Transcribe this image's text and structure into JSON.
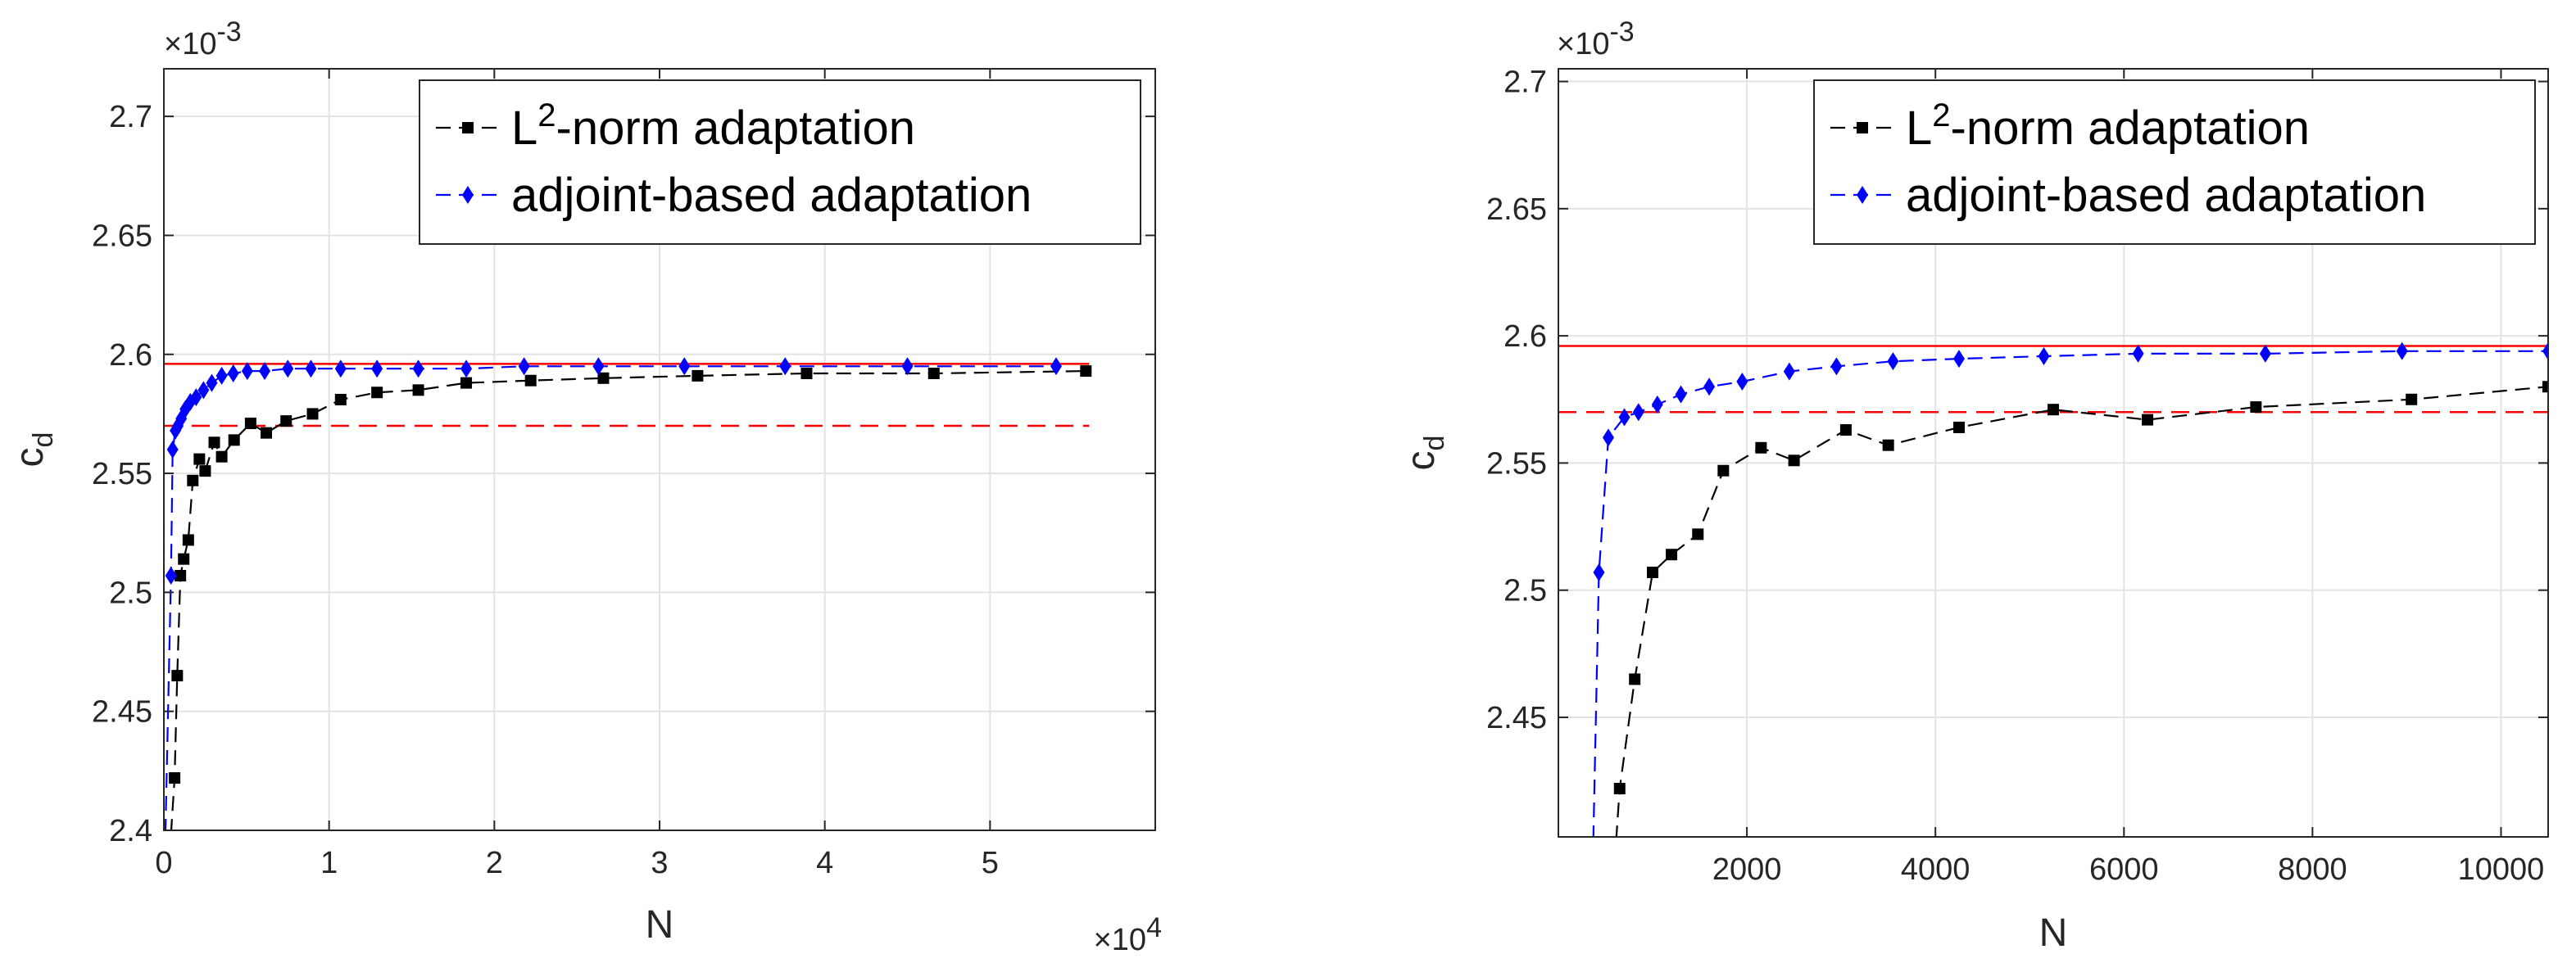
{
  "chart_data": [
    {
      "type": "line",
      "xlabel": "N",
      "ylabel": "c",
      "ylabel_sub": "d",
      "xlim": [
        0,
        60000
      ],
      "ylim": [
        0.0024,
        0.00272
      ],
      "xtick_values": [
        0,
        10000,
        20000,
        30000,
        40000,
        50000
      ],
      "xtick_labels": [
        "0",
        "1",
        "2",
        "3",
        "4",
        "5"
      ],
      "ytick_values": [
        0.0024,
        0.00245,
        0.0025,
        0.00255,
        0.0026,
        0.00265,
        0.0027
      ],
      "ytick_labels": [
        "2.4",
        "2.45",
        "2.5",
        "2.55",
        "2.6",
        "2.65",
        "2.7"
      ],
      "x_multiplier": {
        "base": "×10",
        "exp": "4"
      },
      "y_multiplier": {
        "base": "×10",
        "exp": "-3"
      },
      "grid": true,
      "legend_position": "top-right",
      "series": [
        {
          "name": "L2-norm adaptation",
          "legend_base": "L",
          "legend_sup": "2",
          "legend_rest": "-norm adaptation",
          "color": "#000000",
          "marker": "square",
          "line": "dashed",
          "x": [
            650,
            810,
            1000,
            1200,
            1480,
            1750,
            2150,
            2500,
            3050,
            3500,
            4250,
            5250,
            6200,
            7400,
            9000,
            10700,
            12900,
            15400,
            18300,
            22200,
            26600,
            32300,
            38900,
            46600,
            55800
          ],
          "y": [
            0.002422,
            0.002465,
            0.002507,
            0.002514,
            0.002522,
            0.002547,
            0.002556,
            0.002551,
            0.002563,
            0.002557,
            0.002564,
            0.002571,
            0.002567,
            0.002572,
            0.002575,
            0.002581,
            0.002584,
            0.002585,
            0.002588,
            0.002589,
            0.00259,
            0.002591,
            0.002592,
            0.002592,
            0.002593
          ]
        },
        {
          "name": "adjoint-based adaptation",
          "legend_base": "adjoint-based adaptation",
          "legend_sup": "",
          "legend_rest": "",
          "color": "#0000ff",
          "marker": "diamond",
          "line": "dashed",
          "x": [
            430,
            530,
            700,
            850,
            1050,
            1300,
            1600,
            1950,
            2400,
            2900,
            3500,
            4200,
            5050,
            6100,
            7500,
            8900,
            10700,
            12900,
            15400,
            18300,
            21800,
            26300,
            31500,
            37600,
            45000,
            54000
          ],
          "y": [
            0.002507,
            0.00256,
            0.002568,
            0.00257,
            0.002573,
            0.002577,
            0.00258,
            0.002582,
            0.002585,
            0.002588,
            0.002591,
            0.002592,
            0.002593,
            0.002593,
            0.002594,
            0.002594,
            0.002594,
            0.002594,
            0.002594,
            0.002594,
            0.002595,
            0.002595,
            0.002595,
            0.002595,
            0.002595,
            0.002595
          ]
        }
      ],
      "reference_lines": [
        {
          "y": 0.002596,
          "style": "solid",
          "color": "#ff0000"
        },
        {
          "y": 0.00257,
          "style": "dashed",
          "color": "#ff0000"
        }
      ]
    },
    {
      "type": "line",
      "xlabel": "N",
      "ylabel": "c",
      "ylabel_sub": "d",
      "xlim": [
        0,
        10500
      ],
      "ylim": [
        0.002403,
        0.002705
      ],
      "xtick_values": [
        2000,
        4000,
        6000,
        8000,
        10000
      ],
      "xtick_labels": [
        "2000",
        "4000",
        "6000",
        "8000",
        "10000"
      ],
      "ytick_values": [
        0.00245,
        0.0025,
        0.00255,
        0.0026,
        0.00265,
        0.0027
      ],
      "ytick_labels": [
        "2.45",
        "2.5",
        "2.55",
        "2.6",
        "2.65",
        "2.7"
      ],
      "y_multiplier": {
        "base": "×10",
        "exp": "-3"
      },
      "grid": true,
      "legend_position": "top-right",
      "series": [
        {
          "name": "L2-norm adaptation",
          "legend_base": "L",
          "legend_sup": "2",
          "legend_rest": "-norm adaptation",
          "color": "#000000",
          "marker": "square",
          "line": "dashed",
          "x": [
            650,
            810,
            1000,
            1200,
            1480,
            1750,
            2150,
            2500,
            3050,
            3500,
            4250,
            5250,
            6250,
            7400,
            9050,
            10500
          ],
          "y": [
            0.002422,
            0.002465,
            0.002507,
            0.002514,
            0.002522,
            0.002547,
            0.002556,
            0.002551,
            0.002563,
            0.002557,
            0.002564,
            0.002571,
            0.002567,
            0.002572,
            0.002575,
            0.00258
          ]
        },
        {
          "name": "adjoint-based adaptation",
          "legend_base": "adjoint-based adaptation",
          "legend_sup": "",
          "legend_rest": "",
          "color": "#0000ff",
          "marker": "diamond",
          "line": "dashed",
          "x": [
            430,
            530,
            700,
            850,
            1050,
            1300,
            1600,
            1950,
            2450,
            2950,
            3550,
            4250,
            5150,
            6150,
            7500,
            8950,
            10500
          ],
          "y": [
            0.002507,
            0.00256,
            0.002568,
            0.00257,
            0.002573,
            0.002577,
            0.00258,
            0.002582,
            0.002586,
            0.002588,
            0.00259,
            0.002591,
            0.002592,
            0.002593,
            0.002593,
            0.002594,
            0.002594
          ]
        }
      ],
      "reference_lines": [
        {
          "y": 0.002596,
          "style": "solid",
          "color": "#ff0000"
        },
        {
          "y": 0.00257,
          "style": "dashed",
          "color": "#ff0000"
        }
      ]
    }
  ]
}
